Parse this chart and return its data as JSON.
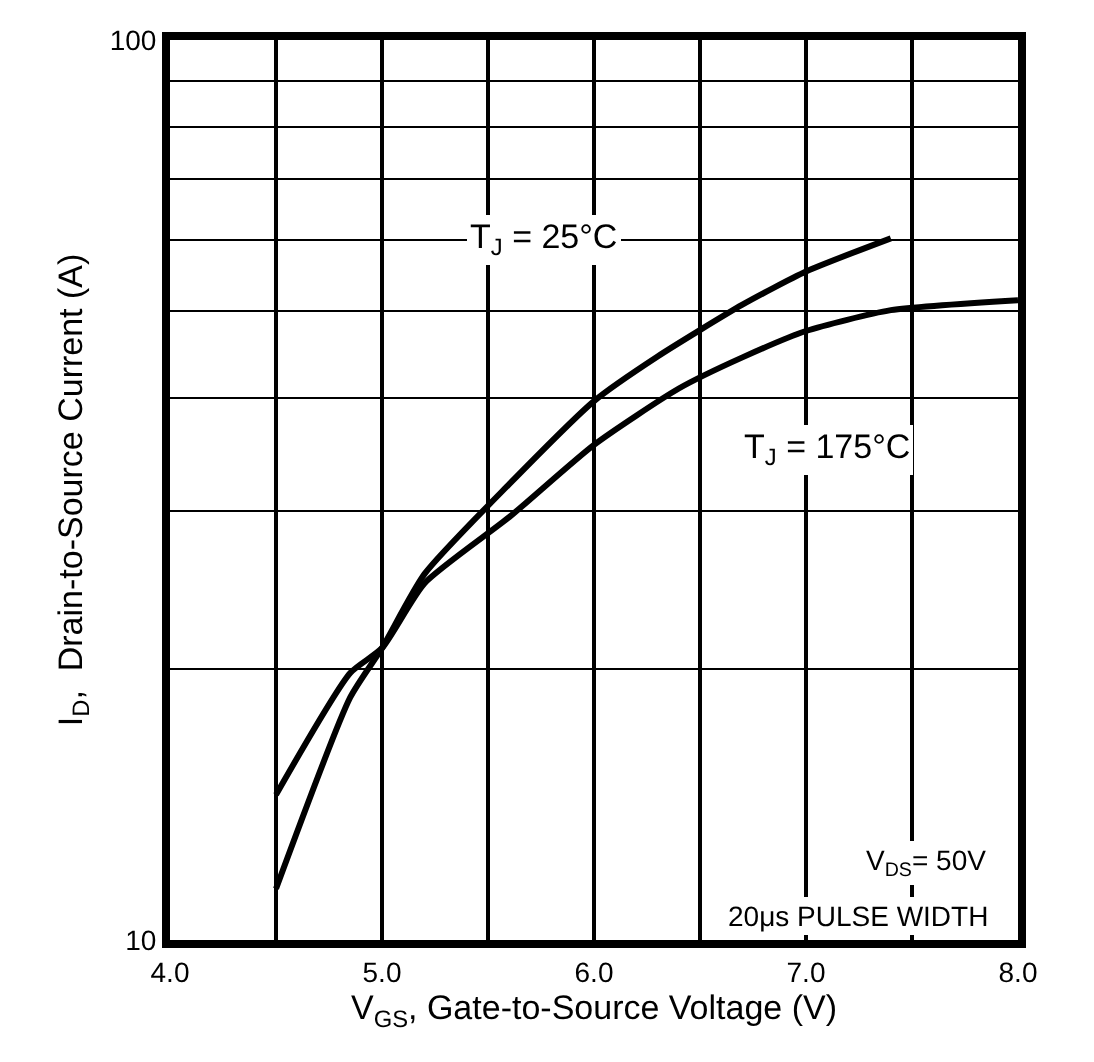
{
  "chart_data": {
    "type": "line",
    "xlabel": "V$_{GS}$, Gate-to-Source Voltage (V)",
    "ylabel": "I$_{D}$,  Drain-to-Source Current (A)",
    "x": [
      4.5,
      4.85,
      5.0,
      5.2,
      5.6,
      6.0,
      6.3,
      6.7,
      7.0,
      7.4
    ],
    "series": [
      {
        "color": "#000000",
        "values": [
          11.4,
          18.6,
          21.1,
          25.5,
          32.1,
          39.7,
          44.5,
          50.8,
          55.3,
          60.2
        ]
      },
      {
        "color": "#000000",
        "x": [
          4.5,
          4.85,
          5.0,
          5.2,
          5.6,
          6.0,
          6.4,
          6.7,
          7.0,
          7.4,
          8.0
        ],
        "values": [
          14.5,
          19.8,
          21.1,
          24.9,
          29.5,
          35.5,
          41.0,
          44.4,
          47.5,
          50.1,
          51.4
        ]
      }
    ],
    "annotations": [
      "T$_{J}$ = 25°C",
      "T$_{J}$ = 175°C",
      "V$_{DS}$= 50V",
      "20μs PULSE WIDTH"
    ],
    "log": "y",
    "grid": true,
    "marker": "none",
    "line_style": "solid",
    "xlim": [
      4.0,
      8.0
    ],
    "xticks": [
      {
        "value": 4.0,
        "label": "4.0"
      },
      {
        "value": 4.5,
        "label": null
      },
      {
        "value": 5.0,
        "label": "5.0"
      },
      {
        "value": 5.5,
        "label": null
      },
      {
        "value": 6.0,
        "label": "6.0"
      },
      {
        "value": 6.5,
        "label": null
      },
      {
        "value": 7.0,
        "label": "7.0"
      },
      {
        "value": 7.5,
        "label": null
      },
      {
        "value": 8.0,
        "label": "8.0"
      }
    ],
    "ylim": [
      10,
      100
    ],
    "yticks": [
      10,
      {
        "value": 20,
        "label": null
      },
      {
        "value": 30,
        "label": null
      },
      {
        "value": 40,
        "label": null
      },
      {
        "value": 50,
        "label": null
      },
      {
        "value": 60,
        "label": null
      },
      {
        "value": 70,
        "label": null
      },
      {
        "value": 80,
        "label": null
      },
      {
        "value": 90,
        "label": null
      },
      100
    ]
  }
}
